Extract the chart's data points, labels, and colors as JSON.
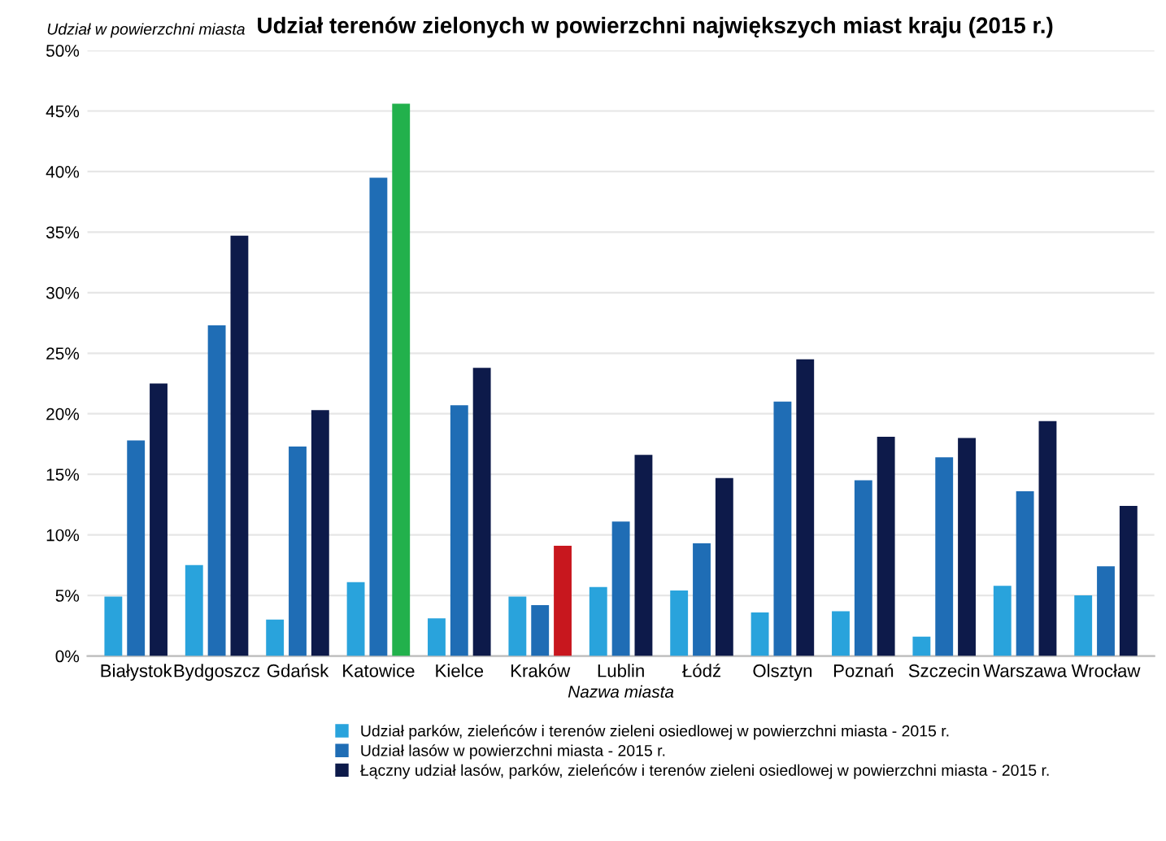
{
  "chart_data": {
    "type": "bar",
    "title": "Udział terenów zielonych w powierzchni największych miast kraju (2015 r.)",
    "ylabel": "Udział w powierzchni miasta",
    "xlabel": "Nazwa miasta",
    "categories": [
      "Białystok",
      "Bydgoszcz",
      "Gdańsk",
      "Katowice",
      "Kielce",
      "Kraków",
      "Lublin",
      "Łódź",
      "Olsztyn",
      "Poznań",
      "Szczecin",
      "Warszawa",
      "Wrocław"
    ],
    "series": [
      {
        "name": "Udział parków, zieleńców i terenów zieleni osiedlowej w powierzchni miasta - 2015 r.",
        "color": "#29a3dc",
        "values": [
          4.9,
          7.5,
          3.0,
          6.1,
          3.1,
          4.9,
          5.7,
          5.4,
          3.6,
          3.7,
          1.6,
          5.8,
          5.0
        ]
      },
      {
        "name": "Udział lasów w powierzchni miasta - 2015 r.",
        "color": "#1f6db5",
        "values": [
          17.8,
          27.3,
          17.3,
          39.5,
          20.7,
          4.2,
          11.1,
          9.3,
          21.0,
          14.5,
          16.4,
          13.6,
          7.4
        ]
      },
      {
        "name": "Łączny udział lasów, parków, zieleńców i terenów zieleni osiedlowej w powierzchni miasta - 2015 r.",
        "color": "#0d1a4a",
        "colors": [
          "#0d1a4a",
          "#0d1a4a",
          "#0d1a4a",
          "#22b14c",
          "#0d1a4a",
          "#c8171e",
          "#0d1a4a",
          "#0d1a4a",
          "#0d1a4a",
          "#0d1a4a",
          "#0d1a4a",
          "#0d1a4a",
          "#0d1a4a"
        ],
        "values": [
          22.5,
          34.7,
          20.3,
          45.6,
          23.8,
          9.1,
          16.6,
          14.7,
          24.5,
          18.1,
          18.0,
          19.4,
          12.4
        ]
      }
    ],
    "ylim": [
      0,
      50
    ],
    "yticks": [
      {
        "value": 0,
        "label": "0%"
      },
      {
        "value": 5,
        "label": "5%"
      },
      {
        "value": 10,
        "label": "10%"
      },
      {
        "value": 15,
        "label": "15%"
      },
      {
        "value": 20,
        "label": "20%"
      },
      {
        "value": 25,
        "label": "25%"
      },
      {
        "value": 30,
        "label": "30%"
      },
      {
        "value": 35,
        "label": "35%"
      },
      {
        "value": 40,
        "label": "40%"
      },
      {
        "value": 45,
        "label": "45%"
      },
      {
        "value": 50,
        "label": "50%"
      }
    ],
    "grid": "y",
    "legend": "bottom"
  }
}
